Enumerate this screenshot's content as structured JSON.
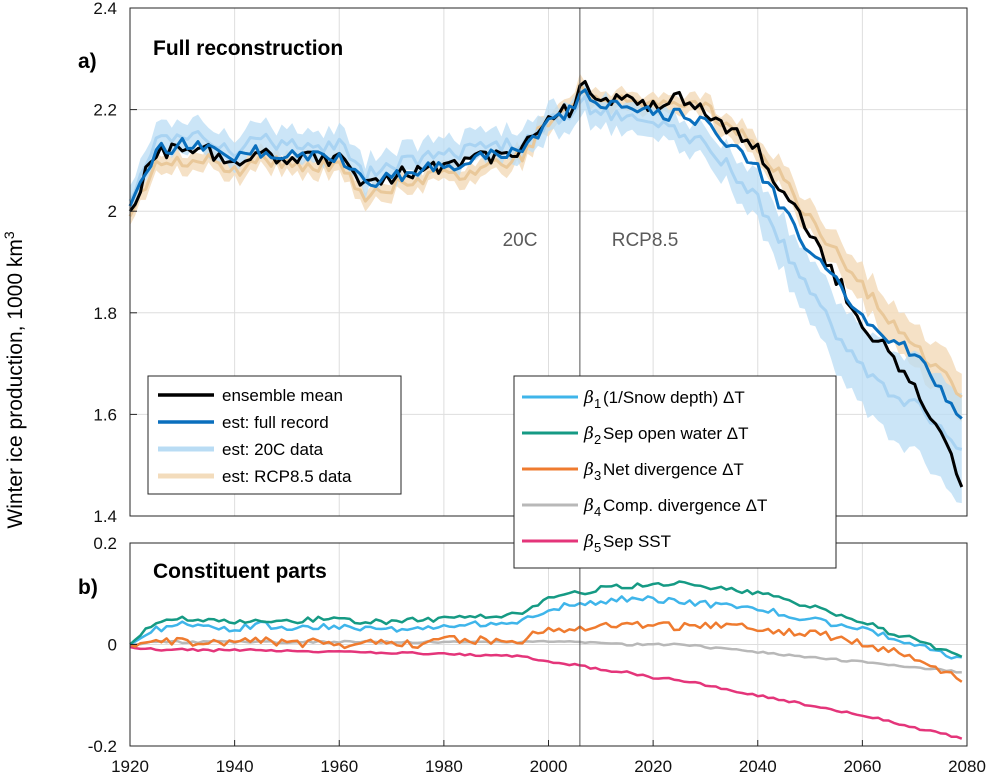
{
  "y_axis_label": "Winter ice production, 1000 km",
  "y_axis_label_sup": "3",
  "x_ticks": [
    "1920",
    "1940",
    "1960",
    "1980",
    "2000",
    "2020",
    "2040",
    "2060",
    "2080"
  ],
  "panel_a": {
    "tag": "a)",
    "title": "Full reconstruction",
    "y_ticks": [
      "1.4",
      "1.6",
      "1.8",
      "2",
      "2.2",
      "2.4"
    ],
    "era_labels": [
      "20C",
      "RCP8.5"
    ],
    "legend": [
      {
        "label": "ensemble mean",
        "color": "#000000"
      },
      {
        "label": "est: full record",
        "color": "#0a6fbd"
      },
      {
        "label": "est: 20C data",
        "color": "#b9dcf4"
      },
      {
        "label": "est: RCP8.5 data",
        "color": "#f3dcbc"
      }
    ]
  },
  "panel_b": {
    "tag": "b)",
    "title": "Constituent parts",
    "y_ticks": [
      "-0.2",
      "0",
      "0.2"
    ],
    "legend": [
      {
        "symbol": "β",
        "sub": "1",
        "label": "(1/Snow depth) ΔT",
        "color": "#3fb5ea"
      },
      {
        "symbol": "β",
        "sub": "2",
        "label": "Sep open water ΔT",
        "color": "#159a84"
      },
      {
        "symbol": "β",
        "sub": "3",
        "label": "Net divergence ΔT",
        "color": "#ef7b2f"
      },
      {
        "symbol": "β",
        "sub": "4",
        "label": "Comp. divergence ΔT",
        "color": "#b8b8b8"
      },
      {
        "symbol": "β",
        "sub": "5",
        "label": "Sep SST",
        "color": "#e4357a"
      }
    ]
  },
  "chart_data": [
    {
      "type": "line",
      "title": "Full reconstruction",
      "xlabel": "",
      "ylabel": "Winter ice production, 1000 km^3",
      "xlim": [
        1920,
        2080
      ],
      "ylim": [
        1.4,
        2.4
      ],
      "divider_year": 2006,
      "x": [
        1920,
        1925,
        1930,
        1935,
        1940,
        1945,
        1950,
        1955,
        1960,
        1965,
        1970,
        1975,
        1980,
        1985,
        1990,
        1995,
        2000,
        2005,
        2006,
        2010,
        2015,
        2020,
        2025,
        2030,
        2035,
        2040,
        2045,
        2050,
        2055,
        2060,
        2065,
        2070,
        2075,
        2079
      ],
      "series": [
        {
          "name": "ensemble mean",
          "color": "#000000",
          "values": [
            2.0,
            2.12,
            2.12,
            2.12,
            2.09,
            2.11,
            2.1,
            2.11,
            2.1,
            2.05,
            2.07,
            2.08,
            2.09,
            2.1,
            2.11,
            2.12,
            2.19,
            2.2,
            2.25,
            2.22,
            2.22,
            2.21,
            2.22,
            2.2,
            2.16,
            2.12,
            2.04,
            1.95,
            1.87,
            1.78,
            1.72,
            1.66,
            1.56,
            1.46
          ]
        },
        {
          "name": "est: full record",
          "color": "#0a6fbd",
          "values": [
            2.01,
            2.12,
            2.13,
            2.12,
            2.1,
            2.12,
            2.11,
            2.11,
            2.11,
            2.05,
            2.07,
            2.08,
            2.09,
            2.1,
            2.11,
            2.12,
            2.18,
            2.2,
            2.24,
            2.2,
            2.21,
            2.19,
            2.19,
            2.17,
            2.13,
            2.08,
            2.0,
            1.92,
            1.86,
            1.8,
            1.75,
            1.72,
            1.65,
            1.6
          ]
        },
        {
          "name": "est: 20C data",
          "color": "#a9d3f2",
          "values": [
            2.02,
            2.14,
            2.15,
            2.14,
            2.12,
            2.14,
            2.13,
            2.13,
            2.13,
            2.07,
            2.09,
            2.1,
            2.11,
            2.12,
            2.13,
            2.13,
            2.18,
            2.19,
            2.22,
            2.19,
            2.19,
            2.17,
            2.16,
            2.13,
            2.08,
            2.02,
            1.93,
            1.84,
            1.76,
            1.69,
            1.64,
            1.62,
            1.57,
            1.52
          ]
        },
        {
          "name": "est: RCP8.5 data",
          "color": "#e9c89a",
          "values": [
            1.99,
            2.1,
            2.1,
            2.1,
            2.08,
            2.1,
            2.09,
            2.09,
            2.09,
            2.03,
            2.05,
            2.06,
            2.07,
            2.08,
            2.09,
            2.11,
            2.18,
            2.2,
            2.24,
            2.22,
            2.22,
            2.22,
            2.22,
            2.2,
            2.17,
            2.13,
            2.06,
            1.98,
            1.92,
            1.85,
            1.79,
            1.74,
            1.68,
            1.64
          ]
        }
      ]
    },
    {
      "type": "line",
      "title": "Constituent parts",
      "xlabel": "",
      "ylabel": "",
      "xlim": [
        1920,
        2080
      ],
      "ylim": [
        -0.2,
        0.2
      ],
      "divider_year": 2006,
      "x": [
        1920,
        1925,
        1930,
        1935,
        1940,
        1945,
        1950,
        1955,
        1960,
        1965,
        1970,
        1975,
        1980,
        1985,
        1990,
        1995,
        2000,
        2005,
        2010,
        2015,
        2020,
        2025,
        2030,
        2035,
        2040,
        2045,
        2050,
        2055,
        2060,
        2065,
        2070,
        2075,
        2079
      ],
      "series": [
        {
          "name": "β1 (1/Snow depth) ΔT",
          "color": "#3fb5ea",
          "values": [
            0.0,
            0.03,
            0.04,
            0.035,
            0.03,
            0.04,
            0.03,
            0.035,
            0.035,
            0.03,
            0.03,
            0.035,
            0.035,
            0.04,
            0.04,
            0.045,
            0.07,
            0.08,
            0.085,
            0.09,
            0.09,
            0.085,
            0.08,
            0.075,
            0.07,
            0.06,
            0.05,
            0.04,
            0.03,
            0.015,
            0.0,
            -0.015,
            -0.03
          ]
        },
        {
          "name": "β2 Sep open water ΔT",
          "color": "#159a84",
          "values": [
            0.0,
            0.045,
            0.05,
            0.05,
            0.045,
            0.05,
            0.045,
            0.05,
            0.05,
            0.045,
            0.045,
            0.05,
            0.05,
            0.055,
            0.055,
            0.06,
            0.09,
            0.1,
            0.11,
            0.115,
            0.12,
            0.12,
            0.115,
            0.11,
            0.1,
            0.09,
            0.075,
            0.06,
            0.045,
            0.025,
            0.01,
            -0.01,
            -0.025
          ]
        },
        {
          "name": "β3 Net divergence ΔT",
          "color": "#ef7b2f",
          "values": [
            0.0,
            0.01,
            0.005,
            0.0,
            0.005,
            0.01,
            0.0,
            0.005,
            0.0,
            0.005,
            0.005,
            0.0,
            0.01,
            0.01,
            0.005,
            0.01,
            0.03,
            0.03,
            0.035,
            0.04,
            0.04,
            0.035,
            0.04,
            0.035,
            0.03,
            0.025,
            0.02,
            0.015,
            0.0,
            -0.01,
            -0.03,
            -0.05,
            -0.07
          ]
        },
        {
          "name": "β4 Comp. divergence ΔT",
          "color": "#b8b8b8",
          "values": [
            0.0,
            0.005,
            0.005,
            0.005,
            0.005,
            0.005,
            0.005,
            0.005,
            0.005,
            0.005,
            0.005,
            0.005,
            0.005,
            0.005,
            0.005,
            0.005,
            0.005,
            0.005,
            0.005,
            0.0,
            0.0,
            0.0,
            -0.005,
            -0.01,
            -0.015,
            -0.02,
            -0.025,
            -0.03,
            -0.035,
            -0.04,
            -0.045,
            -0.05,
            -0.055
          ]
        },
        {
          "name": "β5 Sep SST",
          "color": "#e4357a",
          "values": [
            -0.005,
            -0.01,
            -0.01,
            -0.012,
            -0.01,
            -0.012,
            -0.012,
            -0.013,
            -0.015,
            -0.016,
            -0.017,
            -0.017,
            -0.018,
            -0.02,
            -0.022,
            -0.022,
            -0.035,
            -0.04,
            -0.05,
            -0.055,
            -0.065,
            -0.07,
            -0.08,
            -0.09,
            -0.1,
            -0.11,
            -0.12,
            -0.13,
            -0.14,
            -0.15,
            -0.165,
            -0.175,
            -0.185
          ]
        }
      ]
    }
  ]
}
